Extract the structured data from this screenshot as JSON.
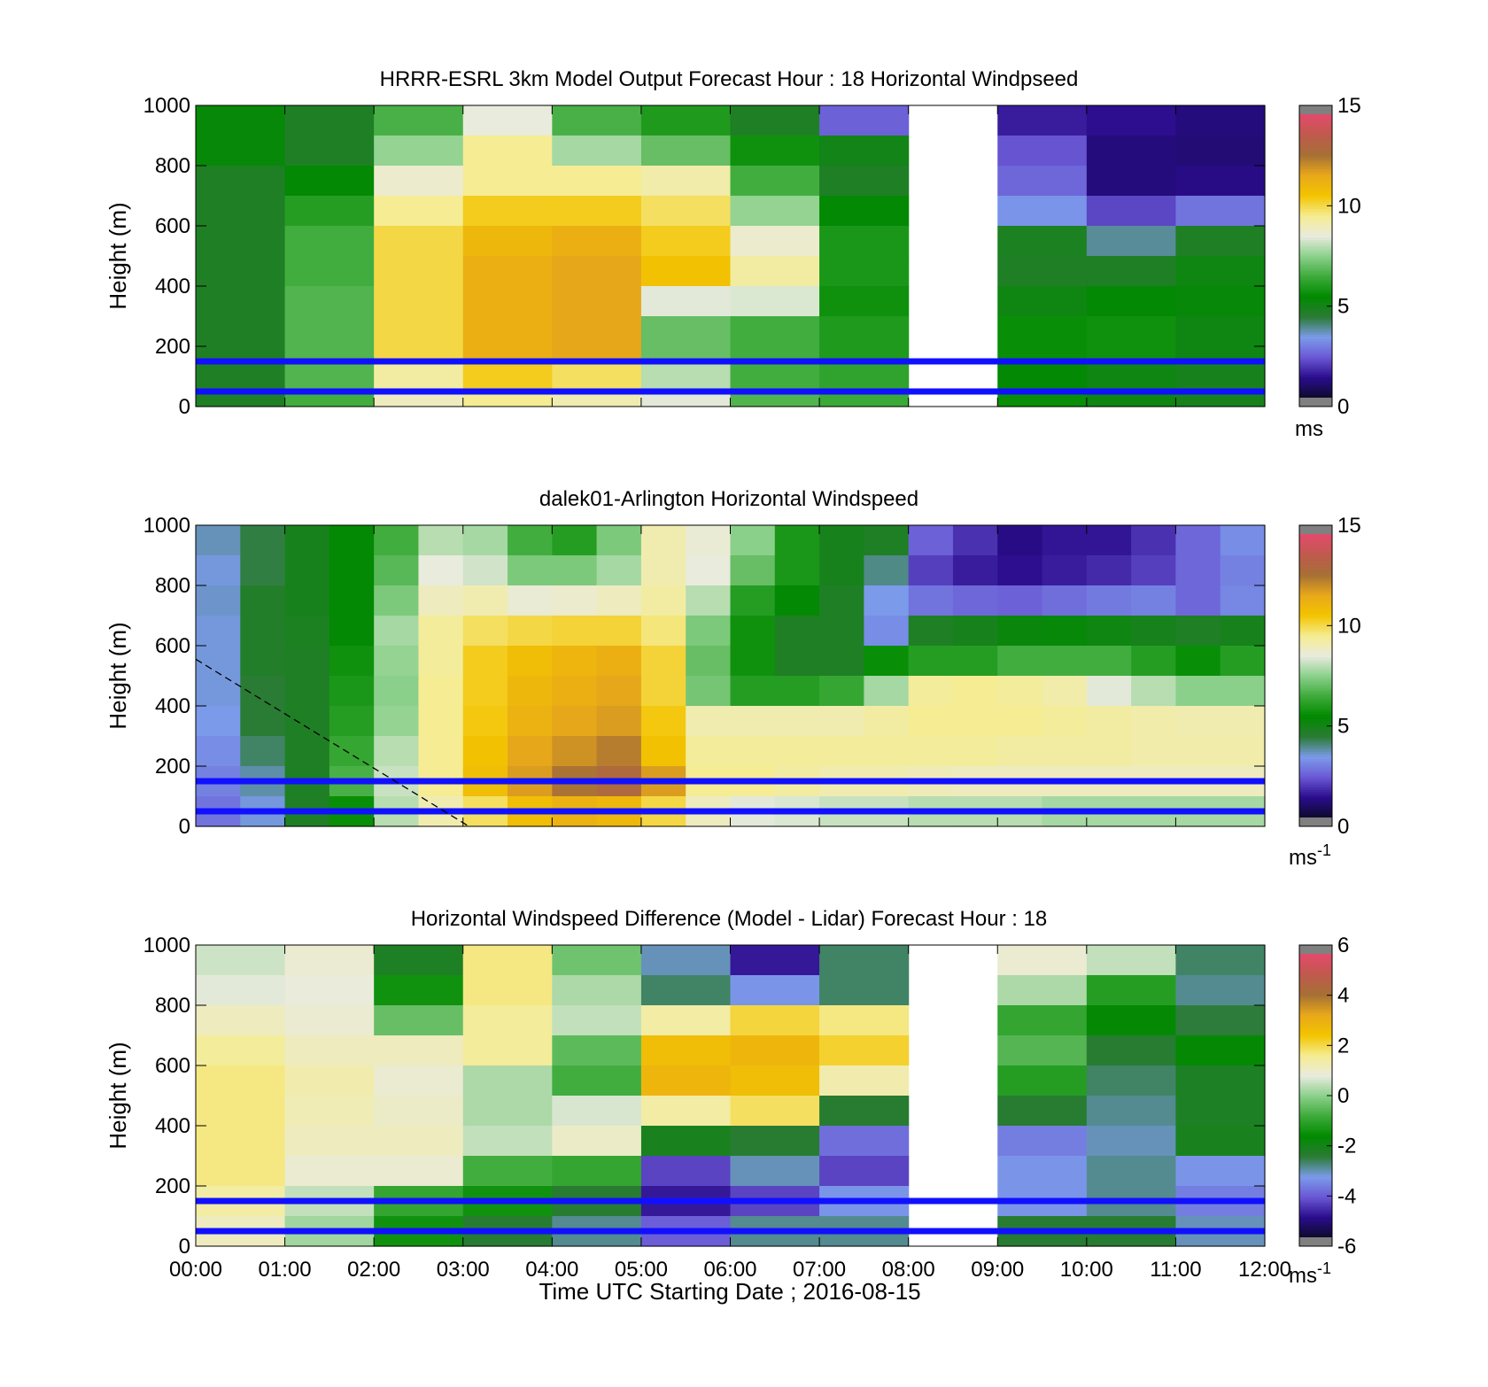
{
  "panels": [
    {
      "title": "HRRR-ESRL 3km Model Output   Forecast Hour : 18 Horizontal Windpseed",
      "ylabel": "Height (m)",
      "yticks": [
        "0",
        "200",
        "400",
        "600",
        "800",
        "1000"
      ],
      "cbar_ticks": [
        "0",
        "5",
        "10",
        "15"
      ],
      "cbar_unit": "ms",
      "cbar_unit_sup": ""
    },
    {
      "title": "dalek01-Arlington  Horizontal Windspeed",
      "ylabel": "Height (m)",
      "yticks": [
        "0",
        "200",
        "400",
        "600",
        "800",
        "1000"
      ],
      "cbar_ticks": [
        "0",
        "5",
        "10",
        "15"
      ],
      "cbar_unit": "ms",
      "cbar_unit_sup": "-1"
    },
    {
      "title": "Horizontal Windspeed Difference (Model - Lidar) Forecast Hour : 18",
      "ylabel": "Height (m)",
      "yticks": [
        "0",
        "200",
        "400",
        "600",
        "800",
        "1000"
      ],
      "cbar_ticks": [
        "-6",
        "-4",
        "-2",
        "0",
        "2",
        "4",
        "6"
      ],
      "cbar_unit": "ms",
      "cbar_unit_sup": "-1"
    }
  ],
  "xlabel": "Time UTC  Starting Date ; 2016-08-15",
  "xticks": [
    "00:00",
    "01:00",
    "02:00",
    "03:00",
    "04:00",
    "05:00",
    "06:00",
    "07:00",
    "08:00",
    "09:00",
    "10:00",
    "11:00",
    "12:00"
  ],
  "chart_data": [
    {
      "type": "heatmap",
      "title": "HRRR-ESRL 3km Model Output   Forecast Hour : 18 Horizontal Windpseed",
      "ylabel": "Height (m)",
      "xlim": [
        "00:00",
        "12:00"
      ],
      "ylim": [
        0,
        1000
      ],
      "clim": [
        0,
        15
      ],
      "unit": "ms",
      "columns": [
        "00:00",
        "01:00",
        "02:00",
        "03:00",
        "04:00",
        "05:00",
        "06:00",
        "07:00",
        "08:00",
        "09:00",
        "10:00",
        "11:00"
      ],
      "height_bins_m": [
        [
          900,
          1000
        ],
        [
          800,
          900
        ],
        [
          700,
          800
        ],
        [
          600,
          700
        ],
        [
          500,
          600
        ],
        [
          400,
          500
        ],
        [
          300,
          400
        ],
        [
          150,
          300
        ],
        [
          50,
          150
        ],
        [
          0,
          50
        ]
      ],
      "values_by_height": [
        [
          5.2,
          4.6,
          6.6,
          8.6,
          6.6,
          5.9,
          4.6,
          2.3,
          null,
          1.3,
          1.1,
          0.9
        ],
        [
          5.2,
          4.6,
          7.6,
          9.6,
          7.8,
          7.0,
          5.6,
          4.9,
          null,
          2.1,
          0.9,
          0.8
        ],
        [
          4.6,
          5.3,
          8.8,
          9.6,
          9.6,
          9.3,
          6.5,
          4.6,
          null,
          2.4,
          0.9,
          1.0
        ],
        [
          4.6,
          6.0,
          9.6,
          10.5,
          10.5,
          10.0,
          7.6,
          5.3,
          null,
          3.1,
          1.9,
          2.6
        ],
        [
          4.6,
          6.5,
          10.2,
          11.2,
          11.5,
          10.5,
          8.8,
          5.8,
          null,
          4.7,
          3.7,
          4.6
        ],
        [
          4.6,
          6.5,
          10.2,
          11.5,
          11.8,
          10.8,
          9.4,
          5.8,
          null,
          4.6,
          4.6,
          5.0
        ],
        [
          4.6,
          6.7,
          10.2,
          11.5,
          11.8,
          8.5,
          8.4,
          5.6,
          null,
          5.0,
          5.3,
          5.2
        ],
        [
          4.6,
          6.7,
          10.2,
          11.5,
          11.8,
          7.0,
          6.5,
          5.9,
          null,
          5.5,
          5.6,
          5.0
        ],
        [
          4.6,
          6.7,
          9.4,
          10.5,
          10.0,
          8.0,
          6.5,
          6.2,
          null,
          5.3,
          5.0,
          4.8
        ],
        [
          4.6,
          6.5,
          9.0,
          9.6,
          9.2,
          8.5,
          6.7,
          6.4,
          null,
          5.5,
          5.0,
          4.8
        ]
      ],
      "reference_lines_m": [
        50,
        150
      ]
    },
    {
      "type": "heatmap",
      "title": "dalek01-Arlington  Horizontal Windspeed",
      "ylabel": "Height (m)",
      "xlim": [
        "00:00",
        "12:00"
      ],
      "ylim": [
        0,
        1000
      ],
      "clim": [
        0,
        15
      ],
      "unit": "ms-1",
      "columns": [
        "00:00",
        "00:30",
        "01:00",
        "01:30",
        "02:00",
        "02:30",
        "03:00",
        "03:30",
        "04:00",
        "04:30",
        "05:00",
        "05:30",
        "06:00",
        "06:30",
        "07:00",
        "07:30",
        "08:00",
        "08:30",
        "09:00",
        "09:30",
        "10:00",
        "10:30",
        "11:00",
        "11:30"
      ],
      "height_bins_m": [
        [
          900,
          1000
        ],
        [
          800,
          900
        ],
        [
          700,
          800
        ],
        [
          600,
          700
        ],
        [
          500,
          600
        ],
        [
          400,
          500
        ],
        [
          300,
          400
        ],
        [
          200,
          300
        ],
        [
          100,
          200
        ],
        [
          0,
          100
        ]
      ],
      "values_by_height": [
        [
          3.5,
          4.2,
          4.8,
          5.3,
          6.5,
          8.0,
          7.8,
          6.5,
          6.0,
          7.3,
          9.2,
          8.7,
          7.5,
          5.8,
          4.8,
          4.6,
          2.3,
          1.6,
          1.0,
          1.2,
          1.2,
          1.6,
          2.4,
          3.0
        ],
        [
          3.3,
          4.2,
          4.8,
          5.3,
          6.8,
          8.6,
          8.3,
          7.3,
          7.3,
          7.8,
          9.2,
          8.6,
          7.0,
          5.8,
          4.8,
          3.8,
          1.8,
          1.3,
          1.1,
          1.3,
          1.5,
          1.8,
          2.4,
          2.8
        ],
        [
          3.4,
          4.5,
          4.8,
          5.3,
          7.3,
          9.0,
          9.2,
          8.7,
          8.8,
          9.0,
          9.4,
          8.0,
          6.0,
          5.3,
          4.6,
          3.2,
          2.6,
          2.4,
          2.3,
          2.5,
          2.7,
          2.8,
          2.4,
          2.9
        ],
        [
          3.3,
          4.5,
          4.7,
          5.3,
          7.8,
          9.5,
          10.0,
          10.2,
          10.3,
          10.3,
          9.8,
          7.3,
          5.6,
          4.6,
          4.6,
          3.0,
          4.6,
          4.8,
          5.1,
          5.2,
          5.0,
          4.8,
          4.6,
          4.8
        ],
        [
          3.3,
          4.5,
          4.6,
          5.6,
          7.6,
          9.5,
          10.5,
          11.0,
          11.3,
          11.5,
          10.3,
          7.0,
          5.6,
          4.6,
          4.6,
          5.5,
          6.0,
          6.0,
          6.5,
          6.5,
          6.5,
          6.0,
          5.5,
          6.0
        ],
        [
          3.3,
          4.3,
          4.6,
          5.8,
          7.5,
          9.6,
          10.5,
          11.2,
          11.5,
          11.8,
          10.3,
          7.2,
          6.0,
          6.0,
          6.3,
          7.8,
          9.5,
          9.6,
          9.5,
          9.3,
          8.5,
          8.0,
          7.5,
          7.5
        ],
        [
          3.2,
          4.3,
          4.6,
          6.0,
          7.6,
          9.6,
          10.6,
          11.4,
          11.8,
          12.0,
          10.6,
          9.2,
          9.2,
          9.2,
          9.2,
          9.4,
          9.6,
          9.6,
          9.6,
          9.5,
          9.4,
          9.3,
          9.2,
          9.2
        ],
        [
          3.0,
          4.0,
          4.6,
          6.3,
          8.0,
          9.6,
          10.8,
          11.8,
          12.2,
          12.6,
          10.8,
          9.5,
          9.5,
          9.5,
          9.5,
          9.5,
          9.5,
          9.5,
          9.4,
          9.4,
          9.4,
          9.3,
          9.3,
          9.3
        ],
        [
          2.8,
          3.6,
          4.6,
          6.6,
          8.2,
          9.6,
          11.0,
          12.0,
          12.8,
          13.2,
          12.0,
          9.6,
          9.6,
          9.4,
          9.2,
          9.2,
          9.1,
          9.0,
          9.0,
          9.0,
          9.0,
          9.0,
          9.0,
          9.0
        ],
        [
          2.6,
          3.3,
          4.6,
          5.5,
          8.0,
          9.2,
          10.0,
          11.0,
          11.4,
          11.2,
          10.2,
          9.0,
          8.5,
          8.4,
          8.2,
          8.2,
          8.0,
          8.0,
          8.0,
          7.8,
          7.8,
          7.8,
          7.8,
          7.8
        ]
      ],
      "reference_lines_m": [
        50,
        150
      ],
      "dashed_line": {
        "x": [
          "00:00",
          "03:04"
        ],
        "y": [
          555,
          0
        ]
      }
    },
    {
      "type": "heatmap",
      "title": "Horizontal Windspeed Difference (Model - Lidar) Forecast Hour : 18",
      "ylabel": "Height (m)",
      "xlabel": "Time UTC  Starting Date ; 2016-08-15",
      "xlim": [
        "00:00",
        "12:00"
      ],
      "ylim": [
        0,
        1000
      ],
      "clim": [
        -6,
        6
      ],
      "unit": "ms-1",
      "columns": [
        "00:00",
        "01:00",
        "02:00",
        "03:00",
        "04:00",
        "05:00",
        "06:00",
        "07:00",
        "08:00",
        "09:00",
        "10:00",
        "11:00"
      ],
      "height_bins_m": [
        [
          900,
          1000
        ],
        [
          800,
          900
        ],
        [
          700,
          800
        ],
        [
          600,
          700
        ],
        [
          500,
          600
        ],
        [
          400,
          500
        ],
        [
          300,
          400
        ],
        [
          200,
          300
        ],
        [
          100,
          200
        ],
        [
          0,
          100
        ]
      ],
      "values_by_height": [
        [
          0.6,
          1.0,
          -2.3,
          1.8,
          -0.3,
          -3.2,
          -5.0,
          -2.8,
          null,
          1.0,
          0.5,
          -2.8
        ],
        [
          0.8,
          0.9,
          -1.5,
          1.8,
          0.3,
          -2.8,
          -3.5,
          -2.8,
          null,
          0.3,
          -1.2,
          -3.0
        ],
        [
          1.2,
          1.0,
          -0.4,
          1.6,
          0.5,
          1.5,
          2.2,
          1.8,
          null,
          -1.0,
          -1.8,
          -2.6
        ],
        [
          1.6,
          1.2,
          1.2,
          1.6,
          -0.5,
          2.8,
          3.0,
          2.3,
          null,
          -0.6,
          -2.5,
          -1.8
        ],
        [
          1.8,
          1.4,
          1.0,
          0.3,
          -0.8,
          3.0,
          2.8,
          1.4,
          null,
          -1.2,
          -2.8,
          -2.3
        ],
        [
          1.8,
          1.3,
          1.1,
          0.3,
          0.7,
          1.5,
          2.0,
          -2.5,
          null,
          -2.5,
          -3.0,
          -2.3
        ],
        [
          1.8,
          1.2,
          1.2,
          0.5,
          1.1,
          -2.2,
          -2.5,
          -4.0,
          null,
          -3.8,
          -3.2,
          -2.2
        ],
        [
          1.8,
          1.0,
          1.0,
          -0.8,
          -1.0,
          -4.5,
          -3.2,
          -4.5,
          null,
          -3.5,
          -3.0,
          -3.5
        ],
        [
          1.5,
          0.5,
          -1.0,
          -1.5,
          -2.5,
          -5.0,
          -4.5,
          -3.5,
          null,
          -3.5,
          -3.0,
          -3.8
        ],
        [
          1.2,
          0.2,
          -1.5,
          -2.5,
          -3.0,
          -4.2,
          -3.0,
          -3.0,
          null,
          -2.5,
          -2.5,
          -3.2
        ]
      ],
      "reference_lines_m": [
        50,
        150
      ]
    }
  ],
  "colors": {
    "reference_line": "#1010ff",
    "cmap_stops": [
      "#0d0b2b",
      "#2a0c8c",
      "#6a57d4",
      "#7b9bea",
      "#2b7b35",
      "#018a00",
      "#3daa3a",
      "#8bd08a",
      "#e9ebde",
      "#f5ec90",
      "#f3c400",
      "#e8a81a",
      "#a67035",
      "#bf5a4d",
      "#e34a6c"
    ],
    "cmap_cap": "#808080"
  }
}
